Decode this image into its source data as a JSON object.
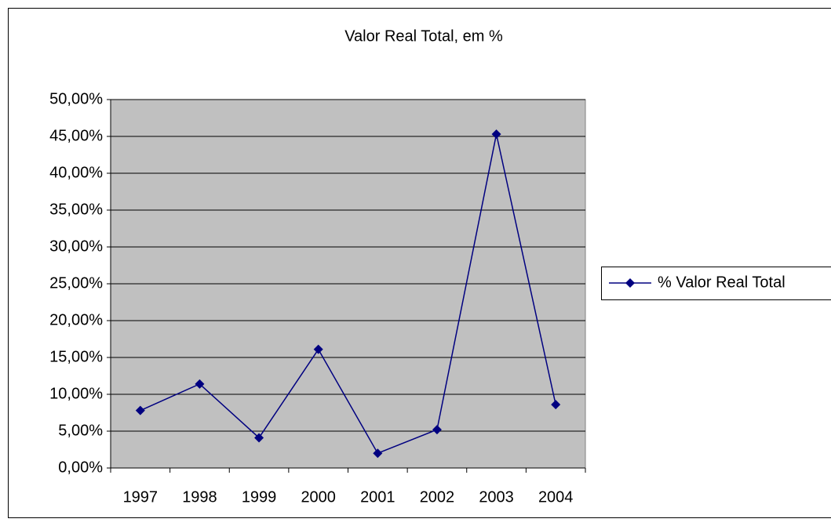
{
  "chart_data": {
    "type": "line",
    "title": "Valor Real Total, em %",
    "categories": [
      "1997",
      "1998",
      "1999",
      "2000",
      "2001",
      "2002",
      "2003",
      "2004"
    ],
    "series": [
      {
        "name": "% Valor Real Total",
        "color": "#000080",
        "values": [
          7.8,
          11.4,
          4.1,
          16.1,
          2.0,
          5.2,
          45.3,
          8.6
        ]
      }
    ],
    "ylim": [
      0,
      50
    ],
    "yticks": [
      {
        "value": 0,
        "label": "0,00%"
      },
      {
        "value": 5,
        "label": "5,00%"
      },
      {
        "value": 10,
        "label": "10,00%"
      },
      {
        "value": 15,
        "label": "15,00%"
      },
      {
        "value": 20,
        "label": "20,00%"
      },
      {
        "value": 25,
        "label": "25,00%"
      },
      {
        "value": 30,
        "label": "30,00%"
      },
      {
        "value": 35,
        "label": "35,00%"
      },
      {
        "value": 40,
        "label": "40,00%"
      },
      {
        "value": 45,
        "label": "45,00%"
      },
      {
        "value": 50,
        "label": "50,00%"
      }
    ],
    "grid": true,
    "legend": "right",
    "plot_background": "#c0c0c0"
  }
}
